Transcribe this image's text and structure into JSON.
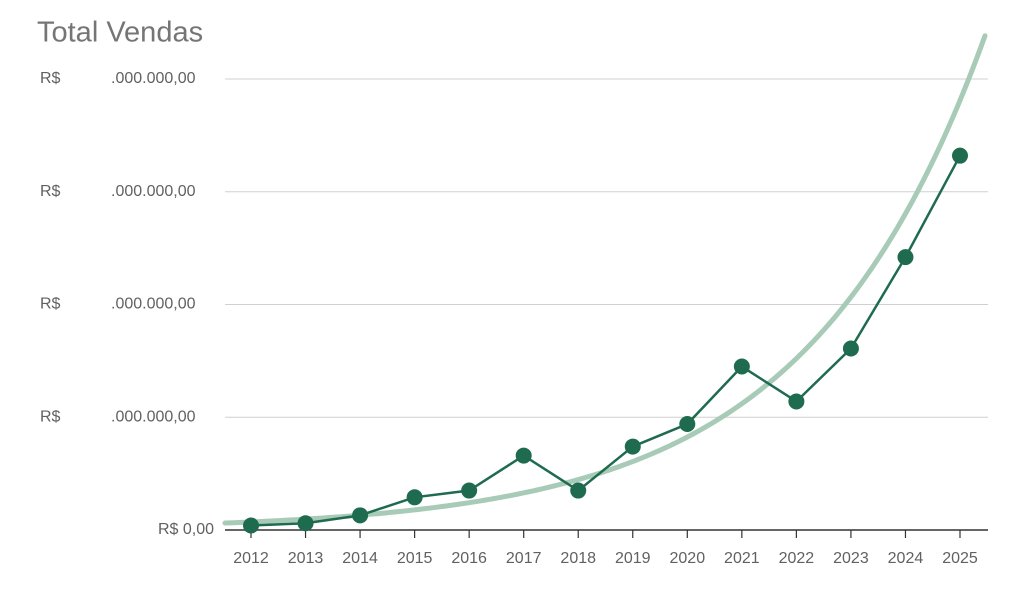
{
  "chart_data": {
    "type": "line",
    "title": "Total Vendas",
    "categories": [
      "2012",
      "2013",
      "2014",
      "2015",
      "2016",
      "2017",
      "2018",
      "2019",
      "2020",
      "2021",
      "2022",
      "2023",
      "2024",
      "2025"
    ],
    "values": [
      0.04,
      0.06,
      0.13,
      0.29,
      0.35,
      0.66,
      0.35,
      0.74,
      0.94,
      1.45,
      1.14,
      1.61,
      2.42,
      3.32
    ],
    "color": "#1e6b4f",
    "trendline": {
      "type": "exponential",
      "color": "#a8cbb8"
    },
    "ylim": [
      0,
      4
    ],
    "yticks": [
      {
        "value": 0,
        "label": "R$ 0,00"
      },
      {
        "value": 1,
        "label": "R$ .000.000,00"
      },
      {
        "value": 2,
        "label": "R$ .000.000,00"
      },
      {
        "value": 3,
        "label": "R$ .000.000,00"
      },
      {
        "value": 4,
        "label": "R$ .000.000,00"
      }
    ],
    "grid": true
  }
}
